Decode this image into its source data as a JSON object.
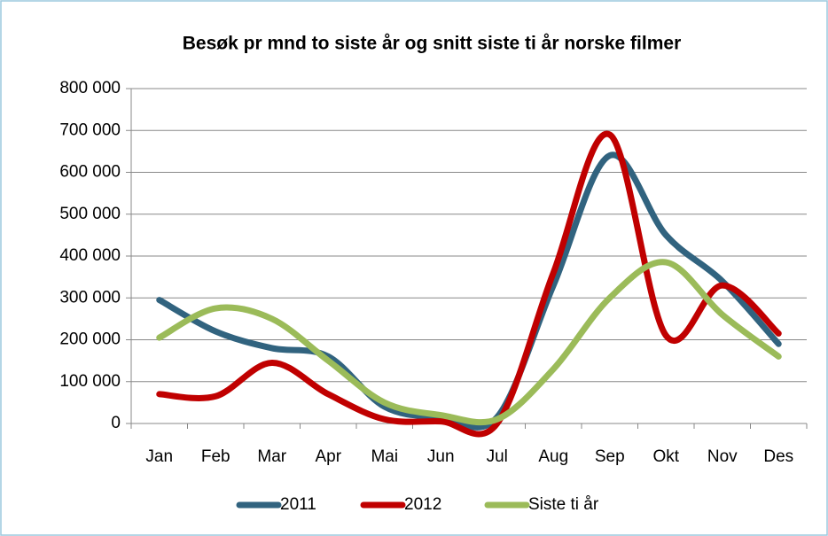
{
  "chart_data": {
    "type": "line",
    "title": "Besøk pr mnd to siste år og snitt siste ti år norske filmer",
    "categories": [
      "Jan",
      "Feb",
      "Mar",
      "Apr",
      "Mai",
      "Jun",
      "Jul",
      "Aug",
      "Sep",
      "Okt",
      "Nov",
      "Des"
    ],
    "series": [
      {
        "name": "2011",
        "color": "#31637f",
        "values": [
          295000,
          220000,
          180000,
          160000,
          40000,
          15000,
          15000,
          330000,
          640000,
          450000,
          340000,
          190000
        ]
      },
      {
        "name": "2012",
        "color": "#c00000",
        "values": [
          70000,
          65000,
          145000,
          70000,
          10000,
          5000,
          0,
          360000,
          690000,
          210000,
          330000,
          215000
        ]
      },
      {
        "name": "Siste ti år",
        "color": "#9bbb59",
        "values": [
          205000,
          275000,
          250000,
          150000,
          50000,
          20000,
          10000,
          130000,
          300000,
          385000,
          260000,
          160000
        ]
      }
    ],
    "ylim": [
      0,
      800000
    ],
    "yticks": [
      {
        "value": 0,
        "label": "0"
      },
      {
        "value": 100000,
        "label": "100 000"
      },
      {
        "value": 200000,
        "label": "200 000"
      },
      {
        "value": 300000,
        "label": "300 000"
      },
      {
        "value": 400000,
        "label": "400 000"
      },
      {
        "value": 500000,
        "label": "500 000"
      },
      {
        "value": 600000,
        "label": "600 000"
      },
      {
        "value": 700000,
        "label": "700 000"
      },
      {
        "value": 800000,
        "label": "800 000"
      }
    ],
    "grid": true,
    "legend": "bottom"
  }
}
